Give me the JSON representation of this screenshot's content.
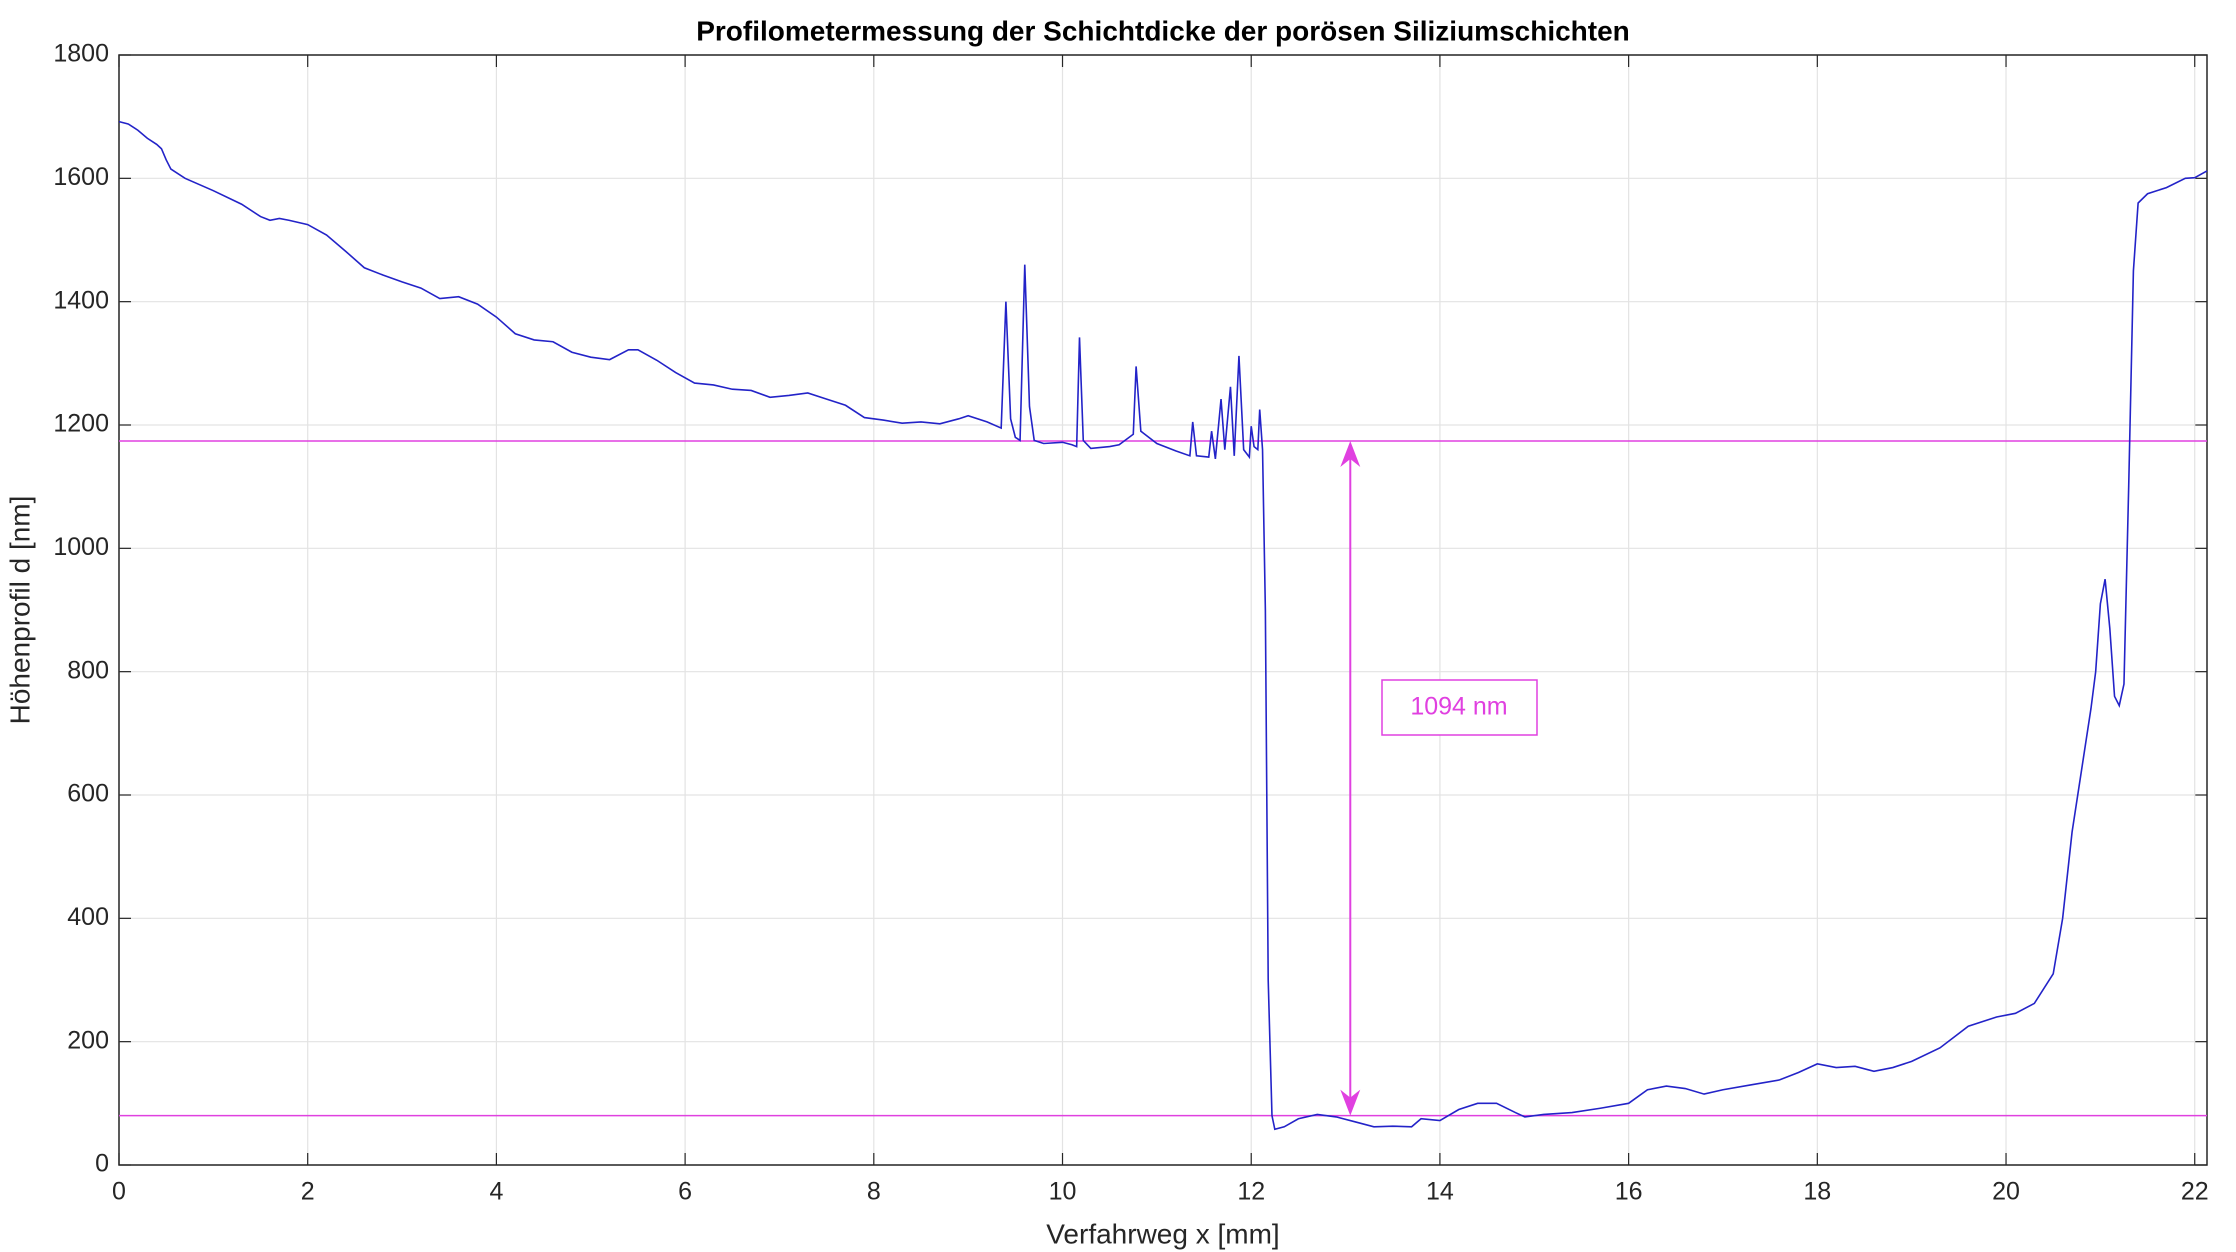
{
  "chart_data": {
    "type": "line",
    "title": "Profilometermessung der Schichtdicke der porösen Siliziumschichten",
    "x_label": "Verfahrweg x [mm]",
    "y_label": "Höhenprofil d [nm]",
    "x": [
      0,
      0.1,
      0.2,
      0.3,
      0.4,
      0.45,
      0.5,
      0.55,
      0.7,
      1.0,
      1.3,
      1.5,
      1.6,
      1.7,
      1.8,
      2.0,
      2.2,
      2.4,
      2.6,
      2.8,
      3.0,
      3.2,
      3.4,
      3.6,
      3.8,
      4.0,
      4.2,
      4.4,
      4.6,
      4.8,
      5.0,
      5.2,
      5.4,
      5.5,
      5.7,
      5.9,
      6.1,
      6.3,
      6.5,
      6.7,
      6.9,
      7.1,
      7.3,
      7.5,
      7.7,
      7.9,
      8.1,
      8.3,
      8.5,
      8.7,
      8.9,
      9.0,
      9.2,
      9.35,
      9.4,
      9.45,
      9.5,
      9.55,
      9.6,
      9.65,
      9.7,
      9.8,
      10.0,
      10.1,
      10.15,
      10.18,
      10.22,
      10.3,
      10.5,
      10.6,
      10.75,
      10.78,
      10.83,
      11.0,
      11.2,
      11.35,
      11.38,
      11.42,
      11.55,
      11.58,
      11.62,
      11.68,
      11.72,
      11.78,
      11.82,
      11.87,
      11.92,
      11.98,
      12.0,
      12.03,
      12.07,
      12.09,
      12.12,
      12.15,
      12.18,
      12.22,
      12.25,
      12.35,
      12.5,
      12.7,
      12.9,
      13.1,
      13.3,
      13.5,
      13.7,
      13.8,
      14.0,
      14.2,
      14.4,
      14.6,
      14.8,
      14.9,
      15.1,
      15.4,
      15.7,
      16.0,
      16.2,
      16.4,
      16.6,
      16.8,
      17.0,
      17.3,
      17.6,
      17.8,
      18.0,
      18.2,
      18.4,
      18.6,
      18.8,
      19.0,
      19.3,
      19.6,
      19.9,
      20.1,
      20.3,
      20.5,
      20.6,
      20.7,
      20.8,
      20.9,
      20.95,
      21.0,
      21.05,
      21.1,
      21.15,
      21.2,
      21.25,
      21.3,
      21.35,
      21.4,
      21.5,
      21.7,
      21.9,
      22.0,
      22.13
    ],
    "series": [
      {
        "color": "#2323c8",
        "values": [
          1692,
          1688,
          1678,
          1665,
          1655,
          1648,
          1630,
          1615,
          1600,
          1580,
          1558,
          1538,
          1532,
          1535,
          1532,
          1525,
          1508,
          1482,
          1455,
          1443,
          1432,
          1422,
          1405,
          1408,
          1396,
          1375,
          1348,
          1338,
          1335,
          1318,
          1310,
          1306,
          1322,
          1322,
          1305,
          1285,
          1268,
          1265,
          1258,
          1256,
          1245,
          1248,
          1252,
          1242,
          1232,
          1212,
          1208,
          1203,
          1205,
          1202,
          1210,
          1215,
          1205,
          1195,
          1400,
          1210,
          1180,
          1175,
          1460,
          1230,
          1175,
          1170,
          1172,
          1168,
          1165,
          1342,
          1175,
          1162,
          1165,
          1168,
          1185,
          1295,
          1190,
          1170,
          1158,
          1150,
          1205,
          1150,
          1148,
          1190,
          1145,
          1242,
          1160,
          1262,
          1150,
          1312,
          1160,
          1148,
          1198,
          1165,
          1160,
          1225,
          1160,
          900,
          300,
          80,
          58,
          62,
          75,
          82,
          78,
          70,
          62,
          63,
          62,
          75,
          72,
          90,
          100,
          100,
          85,
          78,
          82,
          85,
          92,
          100,
          122,
          128,
          124,
          115,
          122,
          130,
          138,
          150,
          164,
          158,
          160,
          152,
          158,
          168,
          190,
          225,
          240,
          246,
          262,
          310,
          400,
          540,
          640,
          740,
          800,
          910,
          950,
          870,
          760,
          745,
          780,
          1100,
          1450,
          1560,
          1575,
          1585,
          1600,
          1601,
          1612
        ]
      }
    ],
    "hlines": [
      1174,
      80
    ],
    "annotation": {
      "text": "1094 nm",
      "x": 13.05,
      "color": "#e040e0"
    },
    "xlim": [
      0,
      22.13
    ],
    "xticks": [
      0,
      2,
      4,
      6,
      8,
      10,
      12,
      14,
      16,
      18,
      20,
      22
    ],
    "ylim": [
      0,
      1800
    ],
    "yticks": [
      0,
      200,
      400,
      600,
      800,
      1000,
      1200,
      1400,
      1600,
      1800
    ],
    "grid": true
  }
}
